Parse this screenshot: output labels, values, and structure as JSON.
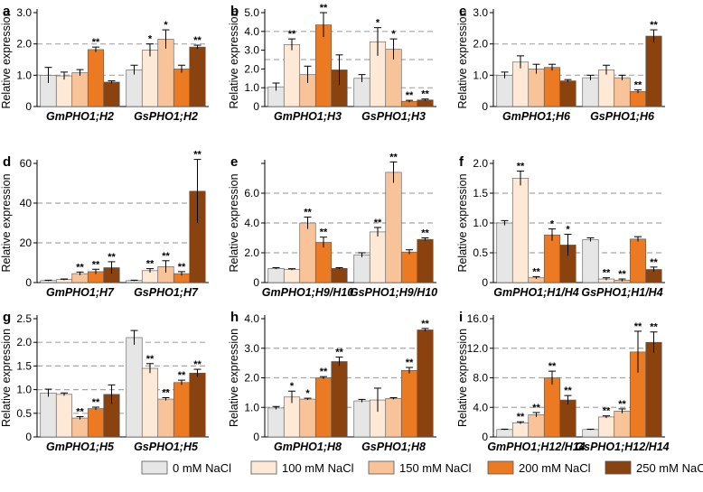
{
  "legend": [
    {
      "label": "0 mM NaCl",
      "color": "#e6e6e6"
    },
    {
      "label": "100 mM NaCl",
      "color": "#fde9d6"
    },
    {
      "label": "150 mM NaCl",
      "color": "#f9c39a"
    },
    {
      "label": "200 mM NaCl",
      "color": "#ec7a22"
    },
    {
      "label": "250 mM NaCl",
      "color": "#8a430f"
    }
  ],
  "chart_data": [
    {
      "panel": "a",
      "type": "bar",
      "ylabel": "Relative expression",
      "ylim": [
        0,
        3.0
      ],
      "yticks": [
        0,
        1.0,
        2.0,
        3.0
      ],
      "tick_labels": [
        "0",
        "1.0",
        "2.0",
        "3.0"
      ],
      "gridlines": [
        1.0,
        2.0
      ],
      "groups": [
        {
          "label": "GmPHO1;H2",
          "values": [
            1.0,
            0.98,
            1.08,
            1.82,
            0.78
          ],
          "errors": [
            0.25,
            0.12,
            0.1,
            0.08,
            0.04
          ],
          "marks": [
            "",
            "",
            "",
            "**",
            ""
          ]
        },
        {
          "label": "GsPHO1;H2",
          "values": [
            1.17,
            1.8,
            2.15,
            1.2,
            1.9
          ],
          "errors": [
            0.15,
            0.2,
            0.3,
            0.12,
            0.06
          ],
          "marks": [
            "",
            "*",
            "*",
            "",
            "**"
          ]
        }
      ]
    },
    {
      "panel": "b",
      "type": "bar",
      "ylabel": "Relative expression",
      "ylim": [
        0,
        5.0
      ],
      "yticks": [
        0,
        1.0,
        2.0,
        3.0,
        4.0,
        5.0
      ],
      "tick_labels": [
        "0",
        "1.0",
        "2.0",
        "3.0",
        "4.0",
        "5.0"
      ],
      "gridlines": [
        1.0,
        2.5,
        4.0
      ],
      "groups": [
        {
          "label": "GmPHO1;H3",
          "values": [
            1.05,
            3.3,
            1.7,
            4.35,
            1.95
          ],
          "errors": [
            0.2,
            0.3,
            0.45,
            0.65,
            0.8
          ],
          "marks": [
            "",
            "**",
            "",
            "**",
            ""
          ]
        },
        {
          "label": "GsPHO1;H3",
          "values": [
            1.5,
            3.45,
            3.05,
            0.28,
            0.35
          ],
          "errors": [
            0.2,
            0.75,
            0.55,
            0.05,
            0.05
          ],
          "marks": [
            "",
            "*",
            "*",
            "**",
            "**"
          ]
        }
      ]
    },
    {
      "panel": "c",
      "type": "bar",
      "ylabel": "Relative expression",
      "ylim": [
        0,
        3.0
      ],
      "yticks": [
        0,
        1.0,
        2.0,
        3.0
      ],
      "tick_labels": [
        "0",
        "1.0",
        "2.0",
        "3.0"
      ],
      "gridlines": [
        1.0,
        2.0
      ],
      "groups": [
        {
          "label": "GmPHO1;H6",
          "values": [
            1.0,
            1.42,
            1.2,
            1.25,
            0.82
          ],
          "errors": [
            0.1,
            0.2,
            0.15,
            0.1,
            0.04
          ],
          "marks": [
            "",
            "",
            "",
            "",
            ""
          ]
        },
        {
          "label": "GsPHO1;H6",
          "values": [
            0.92,
            1.17,
            0.92,
            0.48,
            2.25
          ],
          "errors": [
            0.08,
            0.15,
            0.08,
            0.05,
            0.2
          ],
          "marks": [
            "",
            "",
            "",
            "**",
            "**"
          ]
        }
      ]
    },
    {
      "panel": "d",
      "type": "bar",
      "ylabel": "Relative expression",
      "ylim": [
        0,
        60
      ],
      "yticks": [
        0,
        20,
        40,
        60
      ],
      "tick_labels": [
        "0",
        "20",
        "40",
        "60"
      ],
      "gridlines": [
        20,
        40
      ],
      "groups": [
        {
          "label": "GmPHO1;H7",
          "values": [
            1.0,
            1.5,
            4.5,
            5.5,
            7.5
          ],
          "errors": [
            0.2,
            0.3,
            0.8,
            1.2,
            3.0
          ],
          "marks": [
            "",
            "",
            "**",
            "**",
            "**"
          ]
        },
        {
          "label": "GsPHO1;H7",
          "values": [
            1.0,
            6.0,
            8.0,
            4.5,
            46.0
          ],
          "errors": [
            0.2,
            1.0,
            3.0,
            1.0,
            16.0
          ],
          "marks": [
            "",
            "**",
            "**",
            "**",
            "**"
          ]
        }
      ]
    },
    {
      "panel": "e",
      "type": "bar",
      "ylabel": "Relative expression",
      "ylim": [
        0,
        8.0
      ],
      "yticks": [
        0,
        2.0,
        4.0,
        6.0,
        8.0
      ],
      "tick_labels": [
        "0",
        "2.0",
        "4.0",
        "6.0",
        ""
      ],
      "gridlines": [
        2.0,
        4.0,
        6.0
      ],
      "groups": [
        {
          "label": "GmPHO1;H9/H10",
          "values": [
            0.95,
            0.88,
            4.0,
            2.7,
            0.95
          ],
          "errors": [
            0.05,
            0.05,
            0.4,
            0.35,
            0.05
          ],
          "marks": [
            "",
            "",
            "**",
            "**",
            ""
          ]
        },
        {
          "label": "GsPHO1;H9/H10",
          "values": [
            1.85,
            3.4,
            7.4,
            2.05,
            2.9
          ],
          "errors": [
            0.15,
            0.3,
            0.7,
            0.15,
            0.1
          ],
          "marks": [
            "",
            "**",
            "**",
            "",
            "**"
          ]
        }
      ]
    },
    {
      "panel": "f",
      "type": "bar",
      "ylabel": "Relative expression",
      "ylim": [
        0,
        2.0
      ],
      "yticks": [
        0,
        0.5,
        1.0,
        1.5,
        2.0
      ],
      "tick_labels": [
        "0",
        "0.5",
        "1.0",
        "1.5",
        "2.0"
      ],
      "gridlines": [
        0.5,
        1.0,
        1.5
      ],
      "groups": [
        {
          "label": "GmPHO1;H1/H4",
          "values": [
            1.0,
            1.75,
            0.08,
            0.8,
            0.63
          ],
          "errors": [
            0.04,
            0.12,
            0.02,
            0.1,
            0.18
          ],
          "marks": [
            "",
            "**",
            "**",
            "*",
            "*"
          ]
        },
        {
          "label": "GsPHO1;H1/H4",
          "values": [
            0.72,
            0.06,
            0.04,
            0.73,
            0.22
          ],
          "errors": [
            0.03,
            0.02,
            0.02,
            0.04,
            0.04
          ],
          "marks": [
            "",
            "**",
            "**",
            "",
            "**"
          ]
        }
      ]
    },
    {
      "panel": "g",
      "type": "bar",
      "ylabel": "Relative expression",
      "ylim": [
        0,
        2.5
      ],
      "yticks": [
        0,
        0.5,
        1.0,
        1.5,
        2.0,
        2.5
      ],
      "tick_labels": [
        "0",
        "0.5",
        "1.0",
        "1.5",
        "2.0",
        "2.5"
      ],
      "gridlines": [
        0.5,
        1.0,
        1.5,
        2.0
      ],
      "groups": [
        {
          "label": "GmPHO1;H5",
          "values": [
            0.93,
            0.9,
            0.4,
            0.6,
            0.9
          ],
          "errors": [
            0.08,
            0.03,
            0.03,
            0.03,
            0.2
          ],
          "marks": [
            "",
            "",
            "**",
            "**",
            ""
          ]
        },
        {
          "label": "GsPHO1;H5",
          "values": [
            2.1,
            1.45,
            0.8,
            1.15,
            1.35
          ],
          "errors": [
            0.15,
            0.1,
            0.03,
            0.05,
            0.08
          ],
          "marks": [
            "",
            "**",
            "**",
            "**",
            "**"
          ]
        }
      ]
    },
    {
      "panel": "h",
      "type": "bar",
      "ylabel": "Relative expression",
      "ylim": [
        0,
        4.0
      ],
      "yticks": [
        0,
        1.0,
        2.0,
        3.0,
        4.0
      ],
      "tick_labels": [
        "0",
        "1.0",
        "2.0",
        "3.0",
        "4.0"
      ],
      "gridlines": [
        1.0,
        2.0,
        3.0
      ],
      "groups": [
        {
          "label": "GmPHO1;H8",
          "values": [
            0.98,
            1.35,
            1.28,
            2.0,
            2.55
          ],
          "errors": [
            0.05,
            0.2,
            0.03,
            0.04,
            0.15
          ],
          "marks": [
            "",
            "*",
            "*",
            "**",
            "**"
          ]
        },
        {
          "label": "GsPHO1;H8",
          "values": [
            1.22,
            1.25,
            1.3,
            2.25,
            3.62
          ],
          "errors": [
            0.05,
            0.4,
            0.03,
            0.1,
            0.05
          ],
          "marks": [
            "",
            "",
            "",
            "**",
            "**"
          ]
        }
      ]
    },
    {
      "panel": "i",
      "type": "bar",
      "ylabel": "Relative expression",
      "ylim": [
        0,
        16.0
      ],
      "yticks": [
        0,
        4.0,
        8.0,
        12.0,
        16.0
      ],
      "tick_labels": [
        "0",
        "4.0",
        "8.0",
        "12.0",
        "16.0"
      ],
      "gridlines": [
        4.0,
        8.0,
        12.0
      ],
      "groups": [
        {
          "label": "GmPHO1;H12/H14",
          "values": [
            1.0,
            1.9,
            3.0,
            8.0,
            5.0
          ],
          "errors": [
            0.05,
            0.15,
            0.3,
            0.9,
            0.6
          ],
          "marks": [
            "",
            "**",
            "**",
            "**",
            "**"
          ]
        },
        {
          "label": "GsPHO1;H12/H14",
          "values": [
            1.0,
            2.7,
            3.5,
            11.5,
            12.8
          ],
          "errors": [
            0.05,
            0.15,
            0.3,
            2.8,
            1.4
          ],
          "marks": [
            "",
            "**",
            "**",
            "**",
            "**"
          ]
        }
      ]
    }
  ]
}
